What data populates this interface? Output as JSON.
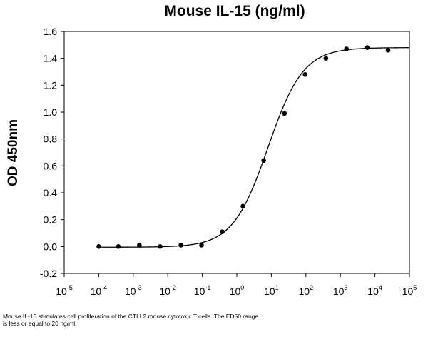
{
  "chart_data": {
    "type": "scatter",
    "title": "Mouse IL-15 (ng/ml)",
    "xlabel": "",
    "ylabel": "OD 450nm",
    "x_scale": "log",
    "xlim": [
      1e-05,
      100000
    ],
    "ylim": [
      -0.2,
      1.6
    ],
    "y_ticks": [
      "-0.2",
      "0.0",
      "0.2",
      "0.4",
      "0.6",
      "0.8",
      "1.0",
      "1.2",
      "1.4",
      "1.6"
    ],
    "x_ticks": [
      {
        "base": "10",
        "exp": "-5"
      },
      {
        "base": "10",
        "exp": "-4"
      },
      {
        "base": "10",
        "exp": "-3"
      },
      {
        "base": "10",
        "exp": "-2"
      },
      {
        "base": "10",
        "exp": "-1"
      },
      {
        "base": "10",
        "exp": "0"
      },
      {
        "base": "10",
        "exp": "1"
      },
      {
        "base": "10",
        "exp": "2"
      },
      {
        "base": "10",
        "exp": "3"
      },
      {
        "base": "10",
        "exp": "4"
      },
      {
        "base": "10",
        "exp": "5"
      }
    ],
    "grid": false,
    "series": [
      {
        "type": "scatter",
        "x": [
          0.0001,
          0.00037,
          0.0015,
          0.006,
          0.024,
          0.095,
          0.38,
          1.5,
          6,
          24,
          95,
          380,
          1500,
          6000,
          24000
        ],
        "y": [
          0.0,
          0.0,
          0.01,
          0.0,
          0.01,
          0.01,
          0.11,
          0.3,
          0.64,
          0.99,
          1.28,
          1.4,
          1.47,
          1.48,
          1.46
        ]
      },
      {
        "type": "line",
        "fit": "4PL",
        "bottom": -0.005,
        "top": 1.48,
        "ec50": 8,
        "hill": 0.85
      }
    ],
    "colors": {
      "points": "#000000",
      "curve": "#000000",
      "axis": "#000000"
    }
  },
  "caption": "Mouse IL-15 stimulates cell proliferation of the CTLL2 mouse cytotoxic T cells. The ED50 range is less or equal to 20 ng/ml."
}
